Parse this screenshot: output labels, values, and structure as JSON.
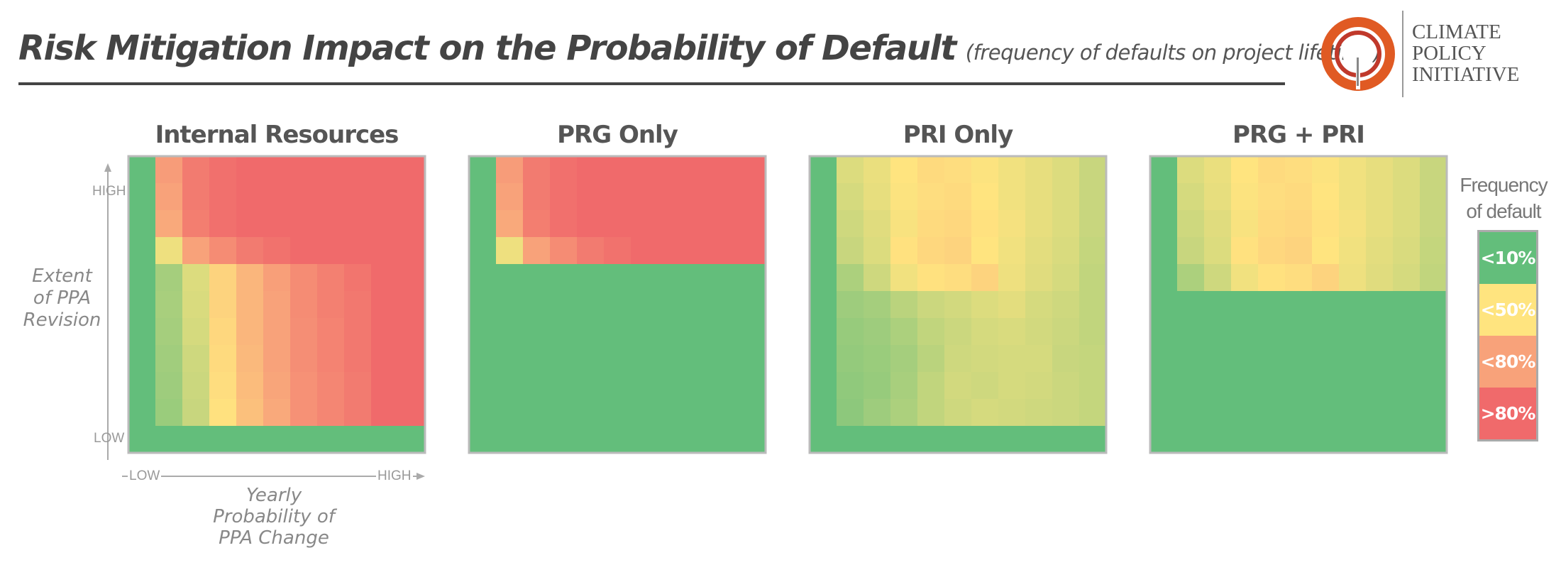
{
  "header": {
    "title": "Risk Mitigation Impact on the Probability of Default",
    "subtitle": "(frequency of defaults on project lifetime)"
  },
  "logo": {
    "lines": [
      "CLIMATE",
      "POLICY",
      "INITIATIVE"
    ],
    "icon": "cpi-ring-logo-icon"
  },
  "axes": {
    "y_title": [
      "Extent",
      "of PPA",
      "Revision"
    ],
    "x_title": [
      "Yearly",
      "Probability of",
      "PPA Change"
    ],
    "y_high": "HIGH",
    "y_low": "LOW",
    "x_low": "LOW",
    "x_high": "HIGH"
  },
  "legend": {
    "title": [
      "Frequency",
      "of default"
    ],
    "items": [
      {
        "label": "<10%",
        "color": "#63be7b"
      },
      {
        "label": "<50%",
        "color": "#ffe47f"
      },
      {
        "label": "<80%",
        "color": "#f8a27a"
      },
      {
        "label": ">80%",
        "color": "#f06a6b"
      }
    ]
  },
  "chart_data": [
    {
      "type": "heatmap",
      "title": "Internal Resources",
      "x": "yearly probability of PPA change, low to high (11 columns)",
      "y": "extent of PPA revision, high (top) to low (bottom) (11 rows)",
      "values": [
        [
          0.05,
          0.72,
          0.84,
          0.88,
          0.9,
          0.9,
          0.9,
          0.9,
          0.9,
          0.9,
          0.9
        ],
        [
          0.05,
          0.7,
          0.84,
          0.88,
          0.9,
          0.9,
          0.9,
          0.9,
          0.9,
          0.9,
          0.9
        ],
        [
          0.05,
          0.68,
          0.83,
          0.88,
          0.9,
          0.9,
          0.9,
          0.9,
          0.9,
          0.9,
          0.9
        ],
        [
          0.05,
          0.45,
          0.7,
          0.78,
          0.84,
          0.87,
          0.9,
          0.9,
          0.9,
          0.9,
          0.9
        ],
        [
          0.05,
          0.24,
          0.4,
          0.55,
          0.64,
          0.71,
          0.78,
          0.82,
          0.86,
          0.9,
          0.9
        ],
        [
          0.05,
          0.25,
          0.39,
          0.55,
          0.64,
          0.7,
          0.78,
          0.82,
          0.85,
          0.9,
          0.9
        ],
        [
          0.05,
          0.24,
          0.38,
          0.54,
          0.64,
          0.7,
          0.77,
          0.81,
          0.85,
          0.9,
          0.9
        ],
        [
          0.05,
          0.23,
          0.36,
          0.53,
          0.63,
          0.7,
          0.77,
          0.81,
          0.85,
          0.9,
          0.9
        ],
        [
          0.05,
          0.22,
          0.35,
          0.52,
          0.62,
          0.69,
          0.76,
          0.8,
          0.84,
          0.9,
          0.9
        ],
        [
          0.05,
          0.21,
          0.34,
          0.51,
          0.61,
          0.68,
          0.76,
          0.8,
          0.84,
          0.9,
          0.9
        ],
        [
          0.05,
          0.05,
          0.05,
          0.05,
          0.05,
          0.05,
          0.05,
          0.05,
          0.05,
          0.05,
          0.05
        ]
      ]
    },
    {
      "type": "heatmap",
      "title": "PRG Only",
      "values": [
        [
          0.05,
          0.72,
          0.84,
          0.88,
          0.9,
          0.9,
          0.9,
          0.9,
          0.9,
          0.9,
          0.9
        ],
        [
          0.05,
          0.7,
          0.84,
          0.88,
          0.9,
          0.9,
          0.9,
          0.9,
          0.9,
          0.9,
          0.9
        ],
        [
          0.05,
          0.68,
          0.83,
          0.88,
          0.9,
          0.9,
          0.9,
          0.9,
          0.9,
          0.9,
          0.9
        ],
        [
          0.05,
          0.45,
          0.7,
          0.78,
          0.84,
          0.87,
          0.9,
          0.9,
          0.9,
          0.9,
          0.9
        ],
        [
          0.05,
          0.05,
          0.05,
          0.05,
          0.05,
          0.05,
          0.05,
          0.05,
          0.05,
          0.05,
          0.05
        ],
        [
          0.05,
          0.05,
          0.05,
          0.05,
          0.05,
          0.05,
          0.05,
          0.05,
          0.05,
          0.05,
          0.05
        ],
        [
          0.05,
          0.05,
          0.05,
          0.05,
          0.05,
          0.05,
          0.05,
          0.05,
          0.05,
          0.05,
          0.05
        ],
        [
          0.05,
          0.05,
          0.05,
          0.05,
          0.05,
          0.05,
          0.05,
          0.05,
          0.05,
          0.05,
          0.05
        ],
        [
          0.05,
          0.05,
          0.05,
          0.05,
          0.05,
          0.05,
          0.05,
          0.05,
          0.05,
          0.05,
          0.05
        ],
        [
          0.05,
          0.05,
          0.05,
          0.05,
          0.05,
          0.05,
          0.05,
          0.05,
          0.05,
          0.05,
          0.05
        ],
        [
          0.05,
          0.05,
          0.05,
          0.05,
          0.05,
          0.05,
          0.05,
          0.05,
          0.05,
          0.05,
          0.05
        ]
      ]
    },
    {
      "type": "heatmap",
      "title": "PRI Only",
      "values": [
        [
          0.05,
          0.4,
          0.44,
          0.5,
          0.53,
          0.52,
          0.49,
          0.46,
          0.43,
          0.4,
          0.34
        ],
        [
          0.05,
          0.38,
          0.43,
          0.49,
          0.52,
          0.53,
          0.5,
          0.46,
          0.43,
          0.4,
          0.34
        ],
        [
          0.05,
          0.36,
          0.41,
          0.48,
          0.53,
          0.54,
          0.51,
          0.47,
          0.43,
          0.4,
          0.34
        ],
        [
          0.05,
          0.34,
          0.4,
          0.51,
          0.54,
          0.55,
          0.5,
          0.46,
          0.42,
          0.39,
          0.33
        ],
        [
          0.05,
          0.26,
          0.36,
          0.46,
          0.51,
          0.52,
          0.55,
          0.45,
          0.41,
          0.38,
          0.32
        ],
        [
          0.05,
          0.22,
          0.24,
          0.3,
          0.35,
          0.37,
          0.4,
          0.42,
          0.38,
          0.36,
          0.32
        ],
        [
          0.05,
          0.2,
          0.22,
          0.26,
          0.32,
          0.35,
          0.38,
          0.39,
          0.37,
          0.35,
          0.32
        ],
        [
          0.05,
          0.19,
          0.21,
          0.24,
          0.3,
          0.36,
          0.37,
          0.38,
          0.38,
          0.34,
          0.33
        ],
        [
          0.05,
          0.18,
          0.2,
          0.25,
          0.32,
          0.37,
          0.36,
          0.38,
          0.37,
          0.35,
          0.33
        ],
        [
          0.05,
          0.17,
          0.22,
          0.26,
          0.32,
          0.36,
          0.38,
          0.37,
          0.36,
          0.35,
          0.33
        ],
        [
          0.05,
          0.05,
          0.05,
          0.05,
          0.05,
          0.05,
          0.05,
          0.05,
          0.05,
          0.05,
          0.05
        ]
      ]
    },
    {
      "type": "heatmap",
      "title": "PRG + PRI",
      "values": [
        [
          0.05,
          0.4,
          0.44,
          0.5,
          0.53,
          0.52,
          0.49,
          0.46,
          0.43,
          0.4,
          0.34
        ],
        [
          0.05,
          0.38,
          0.43,
          0.49,
          0.52,
          0.53,
          0.5,
          0.46,
          0.43,
          0.4,
          0.34
        ],
        [
          0.05,
          0.36,
          0.41,
          0.48,
          0.53,
          0.54,
          0.51,
          0.47,
          0.43,
          0.4,
          0.34
        ],
        [
          0.05,
          0.34,
          0.4,
          0.51,
          0.54,
          0.55,
          0.5,
          0.46,
          0.42,
          0.39,
          0.33
        ],
        [
          0.05,
          0.26,
          0.36,
          0.46,
          0.51,
          0.52,
          0.55,
          0.45,
          0.41,
          0.38,
          0.32
        ],
        [
          0.05,
          0.05,
          0.05,
          0.05,
          0.05,
          0.05,
          0.05,
          0.05,
          0.05,
          0.05,
          0.05
        ],
        [
          0.05,
          0.05,
          0.05,
          0.05,
          0.05,
          0.05,
          0.05,
          0.05,
          0.05,
          0.05,
          0.05
        ],
        [
          0.05,
          0.05,
          0.05,
          0.05,
          0.05,
          0.05,
          0.05,
          0.05,
          0.05,
          0.05,
          0.05
        ],
        [
          0.05,
          0.05,
          0.05,
          0.05,
          0.05,
          0.05,
          0.05,
          0.05,
          0.05,
          0.05,
          0.05
        ],
        [
          0.05,
          0.05,
          0.05,
          0.05,
          0.05,
          0.05,
          0.05,
          0.05,
          0.05,
          0.05,
          0.05
        ],
        [
          0.05,
          0.05,
          0.05,
          0.05,
          0.05,
          0.05,
          0.05,
          0.05,
          0.05,
          0.05,
          0.05
        ]
      ]
    }
  ]
}
